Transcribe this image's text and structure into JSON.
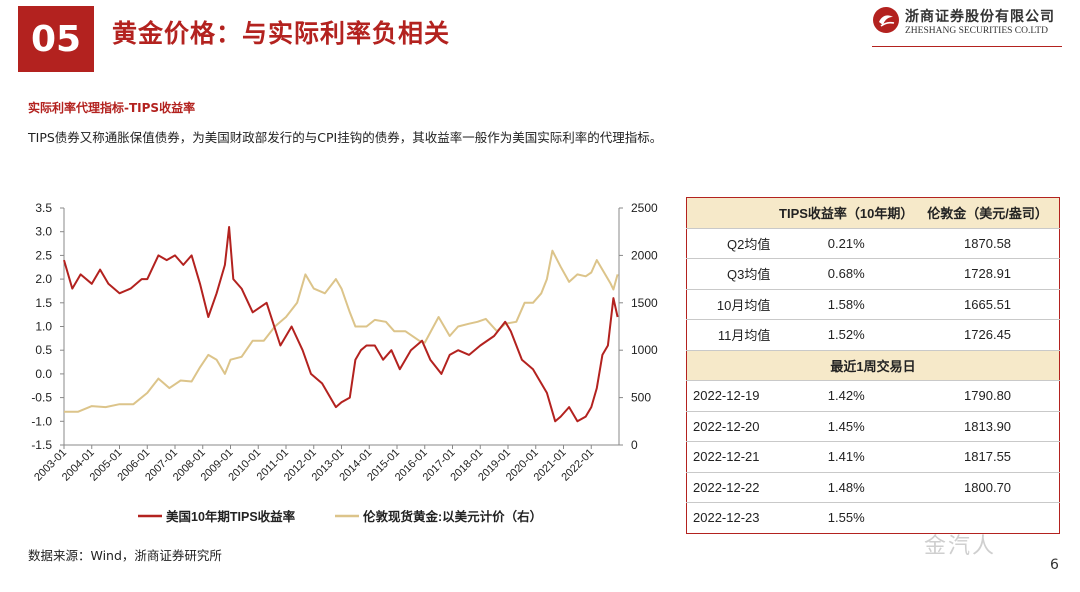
{
  "header": {
    "section_number": "05",
    "title": "黄金价格：与实际利率负相关",
    "logo_cn": "浙商证券股份有限公司",
    "logo_en": "ZHESHANG SECURITIES CO.LTD"
  },
  "subtitle": "实际利率代理指标-TIPS收益率",
  "description": "TIPS债券又称通胀保值债券，为美国财政部发行的与CPI挂钩的债券，其收益率一般作为美国实际利率的代理指标。",
  "source": "数据来源：Wind，浙商证券研究所",
  "page_number": "6",
  "watermark": "金汽人",
  "colors": {
    "brand": "#b3221f",
    "tips_line": "#b3221f",
    "gold_line": "#dcc48a",
    "table_header": "#f6e9c9"
  },
  "chart_data": {
    "type": "line",
    "x": [
      "2003-01",
      "2004-01",
      "2005-01",
      "2006-01",
      "2007-01",
      "2008-01",
      "2009-01",
      "2010-01",
      "2011-01",
      "2012-01",
      "2013-01",
      "2014-01",
      "2015-01",
      "2016-01",
      "2017-01",
      "2018-01",
      "2019-01",
      "2020-01",
      "2021-01",
      "2022-01"
    ],
    "left_axis": {
      "ticks": [
        "3.5",
        "3.0",
        "2.5",
        "2.0",
        "1.5",
        "1.0",
        "0.5",
        "0.0",
        "-0.5",
        "-1.0",
        "-1.5"
      ],
      "ylim": [
        -1.5,
        3.5
      ]
    },
    "right_axis": {
      "ticks": [
        "2500",
        "2000",
        "1500",
        "1000",
        "500",
        "0"
      ],
      "ylim": [
        0,
        2500
      ]
    },
    "series": [
      {
        "name": "美国10年期TIPS收益率",
        "axis": "left",
        "points": [
          [
            2003.0,
            2.4
          ],
          [
            2003.3,
            1.8
          ],
          [
            2003.6,
            2.1
          ],
          [
            2004.0,
            1.9
          ],
          [
            2004.3,
            2.2
          ],
          [
            2004.6,
            1.9
          ],
          [
            2005.0,
            1.7
          ],
          [
            2005.4,
            1.8
          ],
          [
            2005.8,
            2.0
          ],
          [
            2006.0,
            2.0
          ],
          [
            2006.4,
            2.5
          ],
          [
            2006.7,
            2.4
          ],
          [
            2007.0,
            2.5
          ],
          [
            2007.3,
            2.3
          ],
          [
            2007.6,
            2.5
          ],
          [
            2007.9,
            1.9
          ],
          [
            2008.2,
            1.2
          ],
          [
            2008.5,
            1.7
          ],
          [
            2008.8,
            2.3
          ],
          [
            2008.95,
            3.1
          ],
          [
            2009.1,
            2.0
          ],
          [
            2009.4,
            1.8
          ],
          [
            2009.8,
            1.3
          ],
          [
            2010.3,
            1.5
          ],
          [
            2010.8,
            0.6
          ],
          [
            2011.2,
            1.0
          ],
          [
            2011.6,
            0.5
          ],
          [
            2011.9,
            0.0
          ],
          [
            2012.3,
            -0.2
          ],
          [
            2012.8,
            -0.7
          ],
          [
            2013.0,
            -0.6
          ],
          [
            2013.3,
            -0.5
          ],
          [
            2013.5,
            0.3
          ],
          [
            2013.7,
            0.5
          ],
          [
            2013.9,
            0.6
          ],
          [
            2014.2,
            0.6
          ],
          [
            2014.5,
            0.3
          ],
          [
            2014.8,
            0.5
          ],
          [
            2015.1,
            0.1
          ],
          [
            2015.5,
            0.5
          ],
          [
            2015.9,
            0.7
          ],
          [
            2016.2,
            0.3
          ],
          [
            2016.6,
            0.0
          ],
          [
            2016.9,
            0.4
          ],
          [
            2017.2,
            0.5
          ],
          [
            2017.6,
            0.4
          ],
          [
            2018.0,
            0.6
          ],
          [
            2018.5,
            0.8
          ],
          [
            2018.9,
            1.1
          ],
          [
            2019.1,
            0.9
          ],
          [
            2019.5,
            0.3
          ],
          [
            2019.9,
            0.1
          ],
          [
            2020.2,
            -0.2
          ],
          [
            2020.4,
            -0.4
          ],
          [
            2020.7,
            -1.0
          ],
          [
            2020.9,
            -0.9
          ],
          [
            2021.2,
            -0.7
          ],
          [
            2021.5,
            -1.0
          ],
          [
            2021.8,
            -0.9
          ],
          [
            2022.0,
            -0.7
          ],
          [
            2022.2,
            -0.3
          ],
          [
            2022.4,
            0.4
          ],
          [
            2022.6,
            0.6
          ],
          [
            2022.8,
            1.6
          ],
          [
            2022.95,
            1.2
          ]
        ]
      },
      {
        "name": "伦敦现货黄金:以美元计价（右）",
        "axis": "right",
        "points": [
          [
            2003.0,
            350
          ],
          [
            2003.5,
            350
          ],
          [
            2004.0,
            410
          ],
          [
            2004.5,
            400
          ],
          [
            2005.0,
            430
          ],
          [
            2005.5,
            430
          ],
          [
            2006.0,
            550
          ],
          [
            2006.4,
            700
          ],
          [
            2006.8,
            600
          ],
          [
            2007.2,
            680
          ],
          [
            2007.6,
            670
          ],
          [
            2007.9,
            820
          ],
          [
            2008.2,
            950
          ],
          [
            2008.5,
            900
          ],
          [
            2008.8,
            750
          ],
          [
            2009.0,
            900
          ],
          [
            2009.4,
            930
          ],
          [
            2009.8,
            1100
          ],
          [
            2010.2,
            1100
          ],
          [
            2010.6,
            1250
          ],
          [
            2011.0,
            1350
          ],
          [
            2011.4,
            1500
          ],
          [
            2011.7,
            1800
          ],
          [
            2012.0,
            1650
          ],
          [
            2012.4,
            1600
          ],
          [
            2012.8,
            1750
          ],
          [
            2013.0,
            1650
          ],
          [
            2013.3,
            1400
          ],
          [
            2013.5,
            1250
          ],
          [
            2013.9,
            1250
          ],
          [
            2014.2,
            1320
          ],
          [
            2014.6,
            1300
          ],
          [
            2014.9,
            1200
          ],
          [
            2015.3,
            1200
          ],
          [
            2015.8,
            1100
          ],
          [
            2016.0,
            1080
          ],
          [
            2016.5,
            1350
          ],
          [
            2016.9,
            1150
          ],
          [
            2017.2,
            1250
          ],
          [
            2017.6,
            1280
          ],
          [
            2017.9,
            1300
          ],
          [
            2018.2,
            1330
          ],
          [
            2018.6,
            1200
          ],
          [
            2018.9,
            1280
          ],
          [
            2019.3,
            1300
          ],
          [
            2019.6,
            1500
          ],
          [
            2019.9,
            1500
          ],
          [
            2020.2,
            1600
          ],
          [
            2020.4,
            1750
          ],
          [
            2020.6,
            2050
          ],
          [
            2020.9,
            1880
          ],
          [
            2021.2,
            1720
          ],
          [
            2021.5,
            1800
          ],
          [
            2021.8,
            1780
          ],
          [
            2022.0,
            1820
          ],
          [
            2022.2,
            1950
          ],
          [
            2022.4,
            1850
          ],
          [
            2022.7,
            1700
          ],
          [
            2022.8,
            1640
          ],
          [
            2022.95,
            1800
          ]
        ]
      }
    ],
    "legend": {
      "placement": "bottom"
    }
  },
  "table": {
    "headers": [
      "",
      "TIPS收益率（10年期）",
      "伦敦金（美元/盎司）"
    ],
    "rows": [
      [
        "Q2均值",
        "0.21%",
        "1870.58"
      ],
      [
        "Q3均值",
        "0.68%",
        "1728.91"
      ],
      [
        "10月均值",
        "1.58%",
        "1665.51"
      ],
      [
        "11月均值",
        "1.52%",
        "1726.45"
      ]
    ],
    "section_label": "最近1周交易日",
    "daily_rows": [
      [
        "2022-12-19",
        "1.42%",
        "1790.80"
      ],
      [
        "2022-12-20",
        "1.45%",
        "1813.90"
      ],
      [
        "2022-12-21",
        "1.41%",
        "1817.55"
      ],
      [
        "2022-12-22",
        "1.48%",
        "1800.70"
      ],
      [
        "2022-12-23",
        "1.55%",
        ""
      ]
    ]
  }
}
